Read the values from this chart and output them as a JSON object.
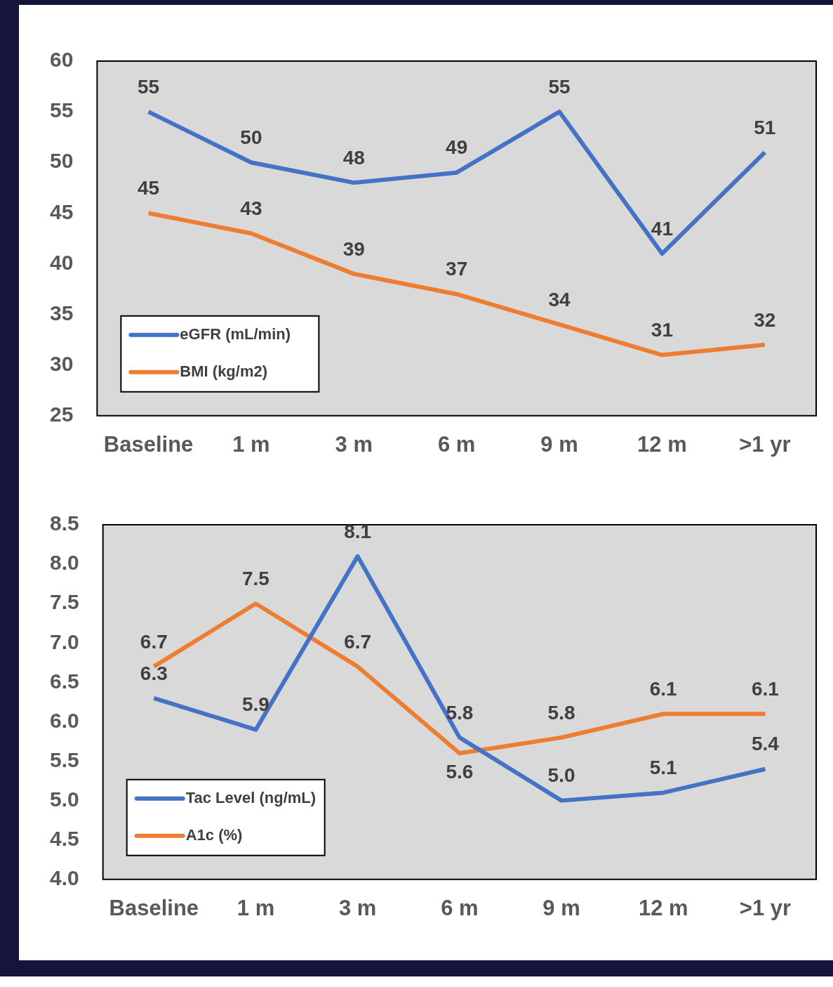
{
  "chart_data": [
    {
      "type": "line",
      "categories": [
        "Baseline",
        "1 m",
        "3 m",
        "6 m",
        "9 m",
        "12 m",
        ">1 yr"
      ],
      "series": [
        {
          "name": "eGFR (mL/min)",
          "color": "#4472c4",
          "values": [
            55,
            50,
            48,
            49,
            55,
            41,
            51
          ]
        },
        {
          "name": "BMI (kg/m2)",
          "color": "#ed7d31",
          "values": [
            45,
            43,
            39,
            37,
            34,
            31,
            32
          ]
        }
      ],
      "ylim": [
        25,
        60
      ],
      "yticks": [
        25,
        30,
        35,
        40,
        45,
        50,
        55,
        60
      ],
      "data_labels": true,
      "legend": "bottom left",
      "marker": "none"
    },
    {
      "type": "line",
      "categories": [
        "Baseline",
        "1 m",
        "3 m",
        "6 m",
        "9 m",
        "12 m",
        ">1 yr"
      ],
      "series": [
        {
          "name": "Tac Level (ng/mL)",
          "color": "#4472c4",
          "values": [
            6.3,
            5.9,
            8.1,
            5.8,
            5.0,
            5.1,
            5.4
          ],
          "value_labels": [
            "6.3",
            "5.9",
            "8.1",
            "5.8",
            "5.0",
            "5.1",
            "5.4"
          ]
        },
        {
          "name": "A1c (%)",
          "color": "#ed7d31",
          "values": [
            6.7,
            7.5,
            6.7,
            5.6,
            5.8,
            6.1,
            6.1
          ]
        }
      ],
      "ylim": [
        4,
        8.5
      ],
      "yticks": [
        {
          "value": 4,
          "label": "4.0"
        },
        {
          "value": 4.5,
          "label": "4.5"
        },
        {
          "value": 5,
          "label": "5.0"
        },
        {
          "value": 5.5,
          "label": "5.5"
        },
        {
          "value": 6,
          "label": "6.0"
        },
        {
          "value": 6.5,
          "label": "6.5"
        },
        {
          "value": 7,
          "label": "7.0"
        },
        {
          "value": 7.5,
          "label": "7.5"
        },
        {
          "value": 8,
          "label": "8.0"
        },
        {
          "value": 8.5,
          "label": "8.5"
        }
      ],
      "data_labels": true,
      "legend": "bottom left",
      "marker": "none"
    }
  ]
}
